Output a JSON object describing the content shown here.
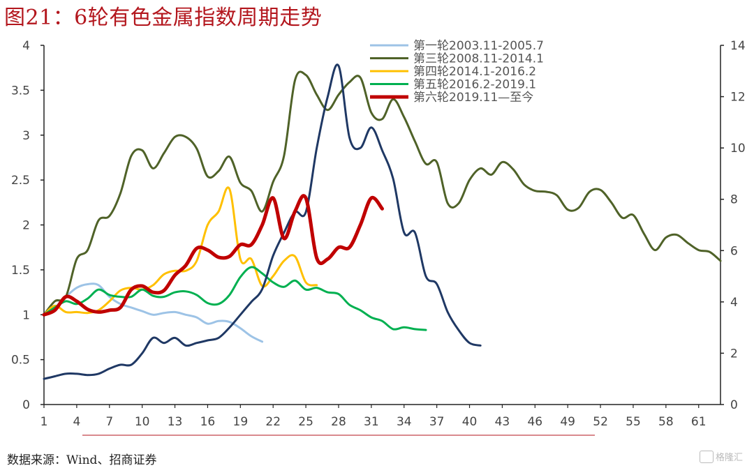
{
  "title": "图21：6轮有色金属指数周期走势",
  "source": "数据来源：Wind、招商证券",
  "watermark": "格隆汇",
  "chart_data": {
    "type": "line",
    "left_ylim": [
      0,
      4
    ],
    "right_ylim": [
      0,
      14
    ],
    "left_yticks": [
      "0",
      "0.5",
      "1",
      "1.5",
      "2",
      "2.5",
      "3",
      "3.5",
      "4"
    ],
    "right_yticks": [
      "0",
      "2",
      "4",
      "6",
      "8",
      "10",
      "12",
      "14"
    ],
    "xlim": [
      1,
      63
    ],
    "xticks": [
      "1",
      "4",
      "7",
      "10",
      "13",
      "16",
      "19",
      "22",
      "25",
      "28",
      "31",
      "34",
      "37",
      "40",
      "43",
      "46",
      "49",
      "52",
      "55",
      "58",
      "61"
    ],
    "legend_position": "top-center",
    "series": [
      {
        "name": "第一轮2003.11-2005.7",
        "color": "#9dc3e6",
        "axis": "left",
        "width": 3,
        "values": [
          1.0,
          1.08,
          1.2,
          1.3,
          1.34,
          1.33,
          1.2,
          1.12,
          1.08,
          1.04,
          1.0,
          1.02,
          1.03,
          1.0,
          0.97,
          0.9,
          0.93,
          0.92,
          0.85,
          0.76,
          0.7
        ]
      },
      {
        "name": "第三轮2008.11-2014.1",
        "color": "#4f6228",
        "axis": "left",
        "width": 3,
        "values": [
          1.0,
          1.15,
          1.2,
          1.62,
          1.72,
          2.05,
          2.1,
          2.35,
          2.77,
          2.83,
          2.63,
          2.8,
          2.98,
          2.98,
          2.85,
          2.54,
          2.6,
          2.76,
          2.47,
          2.38,
          2.15,
          2.48,
          2.77,
          3.61,
          3.67,
          3.45,
          3.28,
          3.45,
          3.59,
          3.64,
          3.25,
          3.18,
          3.4,
          3.2,
          2.93,
          2.68,
          2.7,
          2.24,
          2.24,
          2.5,
          2.63,
          2.56,
          2.7,
          2.62,
          2.45,
          2.38,
          2.37,
          2.33,
          2.17,
          2.19,
          2.37,
          2.39,
          2.25,
          2.08,
          2.11,
          1.9,
          1.72,
          1.86,
          1.89,
          1.8,
          1.72,
          1.7,
          1.6
        ]
      },
      {
        "name": "第四轮2014.1-2016.2",
        "color": "#ffc000",
        "axis": "left",
        "width": 3,
        "values": [
          1.0,
          1.1,
          1.03,
          1.03,
          1.02,
          1.05,
          1.15,
          1.27,
          1.3,
          1.28,
          1.33,
          1.45,
          1.49,
          1.49,
          1.6,
          2.0,
          2.15,
          2.4,
          1.62,
          1.62,
          1.32,
          1.43,
          1.6,
          1.65,
          1.36,
          1.33
        ]
      },
      {
        "name": "第五轮2016.2-2019.1",
        "color": "#00b050",
        "axis": "left",
        "width": 3,
        "values": [
          1.0,
          1.08,
          1.15,
          1.12,
          1.18,
          1.28,
          1.22,
          1.2,
          1.2,
          1.28,
          1.21,
          1.2,
          1.25,
          1.26,
          1.22,
          1.13,
          1.12,
          1.22,
          1.42,
          1.53,
          1.46,
          1.36,
          1.31,
          1.38,
          1.28,
          1.3,
          1.25,
          1.23,
          1.11,
          1.05,
          0.97,
          0.93,
          0.84,
          0.86,
          0.84,
          0.83
        ]
      },
      {
        "name": "第六轮2019.11—至今",
        "color": "#c00000",
        "axis": "left",
        "width": 5,
        "values": [
          1.0,
          1.05,
          1.2,
          1.15,
          1.06,
          1.03,
          1.05,
          1.08,
          1.28,
          1.32,
          1.25,
          1.27,
          1.44,
          1.55,
          1.74,
          1.72,
          1.64,
          1.65,
          1.78,
          1.78,
          2.0,
          2.3,
          1.85,
          2.15,
          2.3,
          1.63,
          1.62,
          1.75,
          1.75,
          2.0,
          2.3,
          2.18
        ]
      },
      {
        "name": "",
        "color": "#1f3864",
        "axis": "right",
        "width": 3,
        "values": [
          1.0,
          1.1,
          1.2,
          1.2,
          1.15,
          1.2,
          1.4,
          1.55,
          1.55,
          2.0,
          2.6,
          2.4,
          2.6,
          2.3,
          2.4,
          2.5,
          2.6,
          3.0,
          3.5,
          4.0,
          4.5,
          5.8,
          6.7,
          7.5,
          7.5,
          10.0,
          12.0,
          13.2,
          10.4,
          10.0,
          10.8,
          9.9,
          8.8,
          6.7,
          6.7,
          5.0,
          4.7,
          3.6,
          2.9,
          2.4,
          2.3
        ]
      }
    ]
  }
}
